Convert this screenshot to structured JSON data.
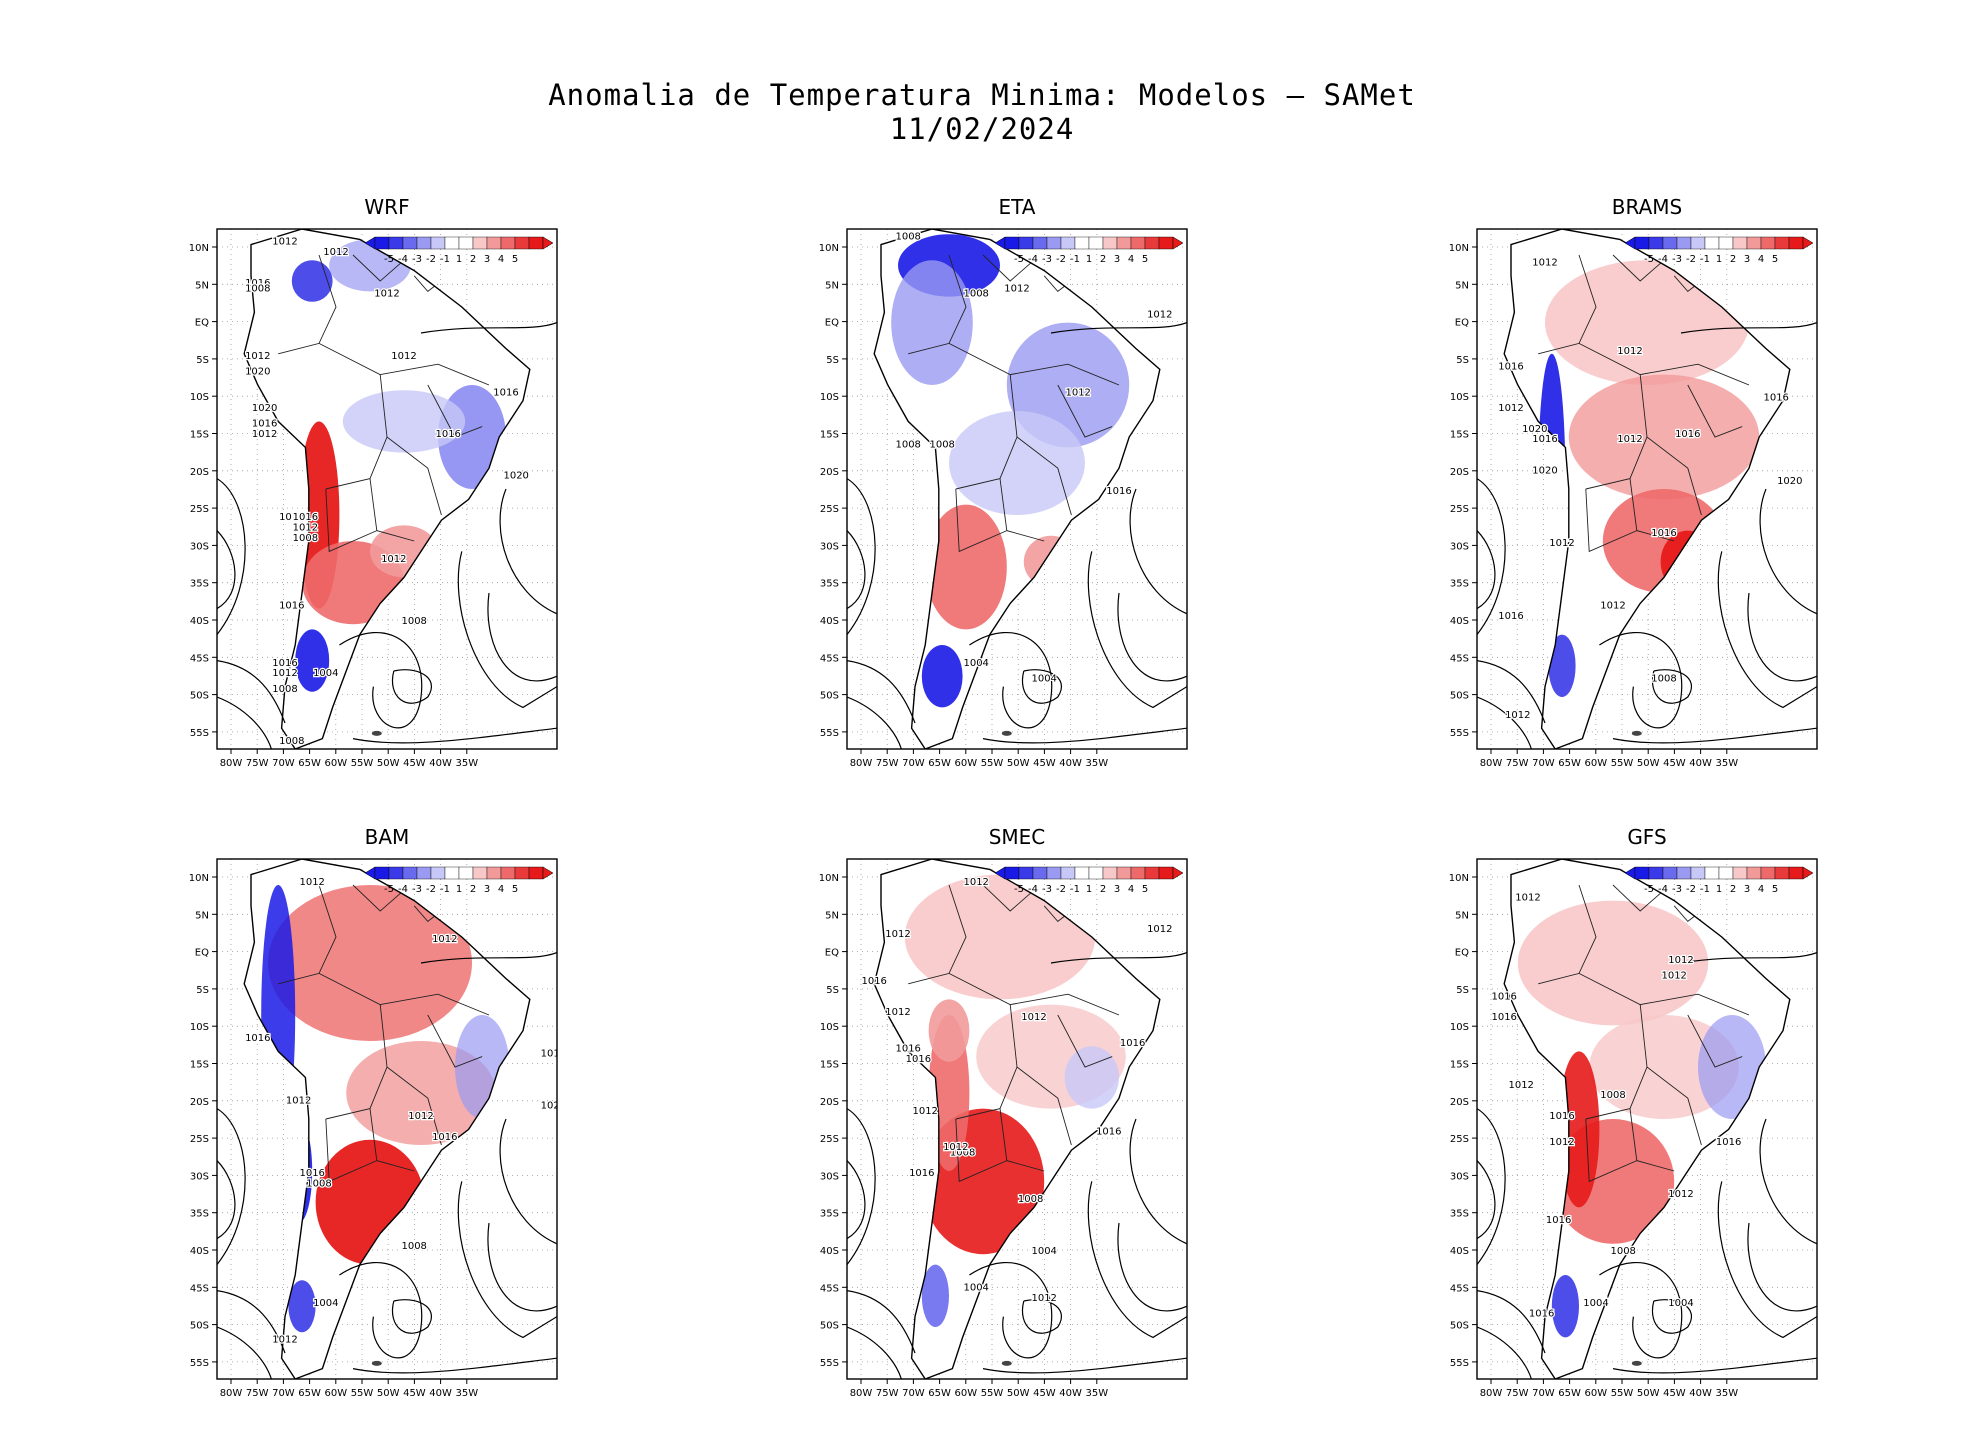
{
  "title": "Anomalia de Temperatura Minima: Modelos — SAMet",
  "date": "11/02/2024",
  "colorbar": {
    "labels": [
      "-5",
      "-4",
      "-3",
      "-2",
      "-1",
      "1",
      "2",
      "3",
      "4",
      "5"
    ],
    "colors": [
      "#1a1ae6",
      "#3a3ae8",
      "#6a6aee",
      "#9a9af2",
      "#c8c8f8",
      "#ffffff",
      "#ffffff",
      "#f8c8c8",
      "#f29a9a",
      "#ee6a6a",
      "#e83a3a",
      "#e61a1a"
    ]
  },
  "axes": {
    "lat_labels": [
      "10N",
      "5N",
      "EQ",
      "5S",
      "10S",
      "15S",
      "20S",
      "25S",
      "30S",
      "35S",
      "40S",
      "45S",
      "50S",
      "55S"
    ],
    "lon_labels": [
      "80W",
      "75W",
      "70W",
      "65W",
      "60W",
      "55W",
      "50W",
      "45W",
      "40W",
      "35W"
    ]
  },
  "panels": [
    {
      "name": "WRF",
      "isobars": [
        "1012",
        "1012",
        "1016",
        "1008",
        "1012",
        "1012",
        "1020",
        "1020",
        "1016",
        "1012",
        "1012",
        "1016",
        "1016",
        "1020",
        "1016",
        "1016",
        "1012",
        "1008",
        "1012",
        "1008",
        "1016",
        "1016",
        "1012",
        "1008",
        "1004",
        "1008"
      ]
    },
    {
      "name": "ETA",
      "isobars": [
        "1008",
        "1008",
        "1012",
        "1012",
        "1012",
        "1008",
        "1008",
        "1016",
        "1004",
        "1004"
      ]
    },
    {
      "name": "BRAMS",
      "isobars": [
        "1012",
        "1016",
        "1012",
        "1016",
        "1012",
        "1020",
        "1016",
        "1012",
        "1016",
        "1020",
        "1020",
        "1012",
        "1016",
        "1016",
        "1012",
        "1008",
        "1012"
      ]
    },
    {
      "name": "BAM",
      "isobars": [
        "1012",
        "1012",
        "1016",
        "1012",
        "1012",
        "1016",
        "1016",
        "1008",
        "1008",
        "1004",
        "1012",
        "101",
        "102"
      ]
    },
    {
      "name": "SMEC",
      "isobars": [
        "1012",
        "1012",
        "1012",
        "1016",
        "1012",
        "1016",
        "1016",
        "1012",
        "1012",
        "1008",
        "1016",
        "1016",
        "1016",
        "1012",
        "1008",
        "1004",
        "1004",
        "1012"
      ]
    },
    {
      "name": "GFS",
      "isobars": [
        "1012",
        "1012",
        "1012",
        "1016",
        "1016",
        "1012",
        "1016",
        "1008",
        "1012",
        "1016",
        "1012",
        "1016",
        "1008",
        "1004",
        "1004",
        "1016"
      ]
    }
  ]
}
